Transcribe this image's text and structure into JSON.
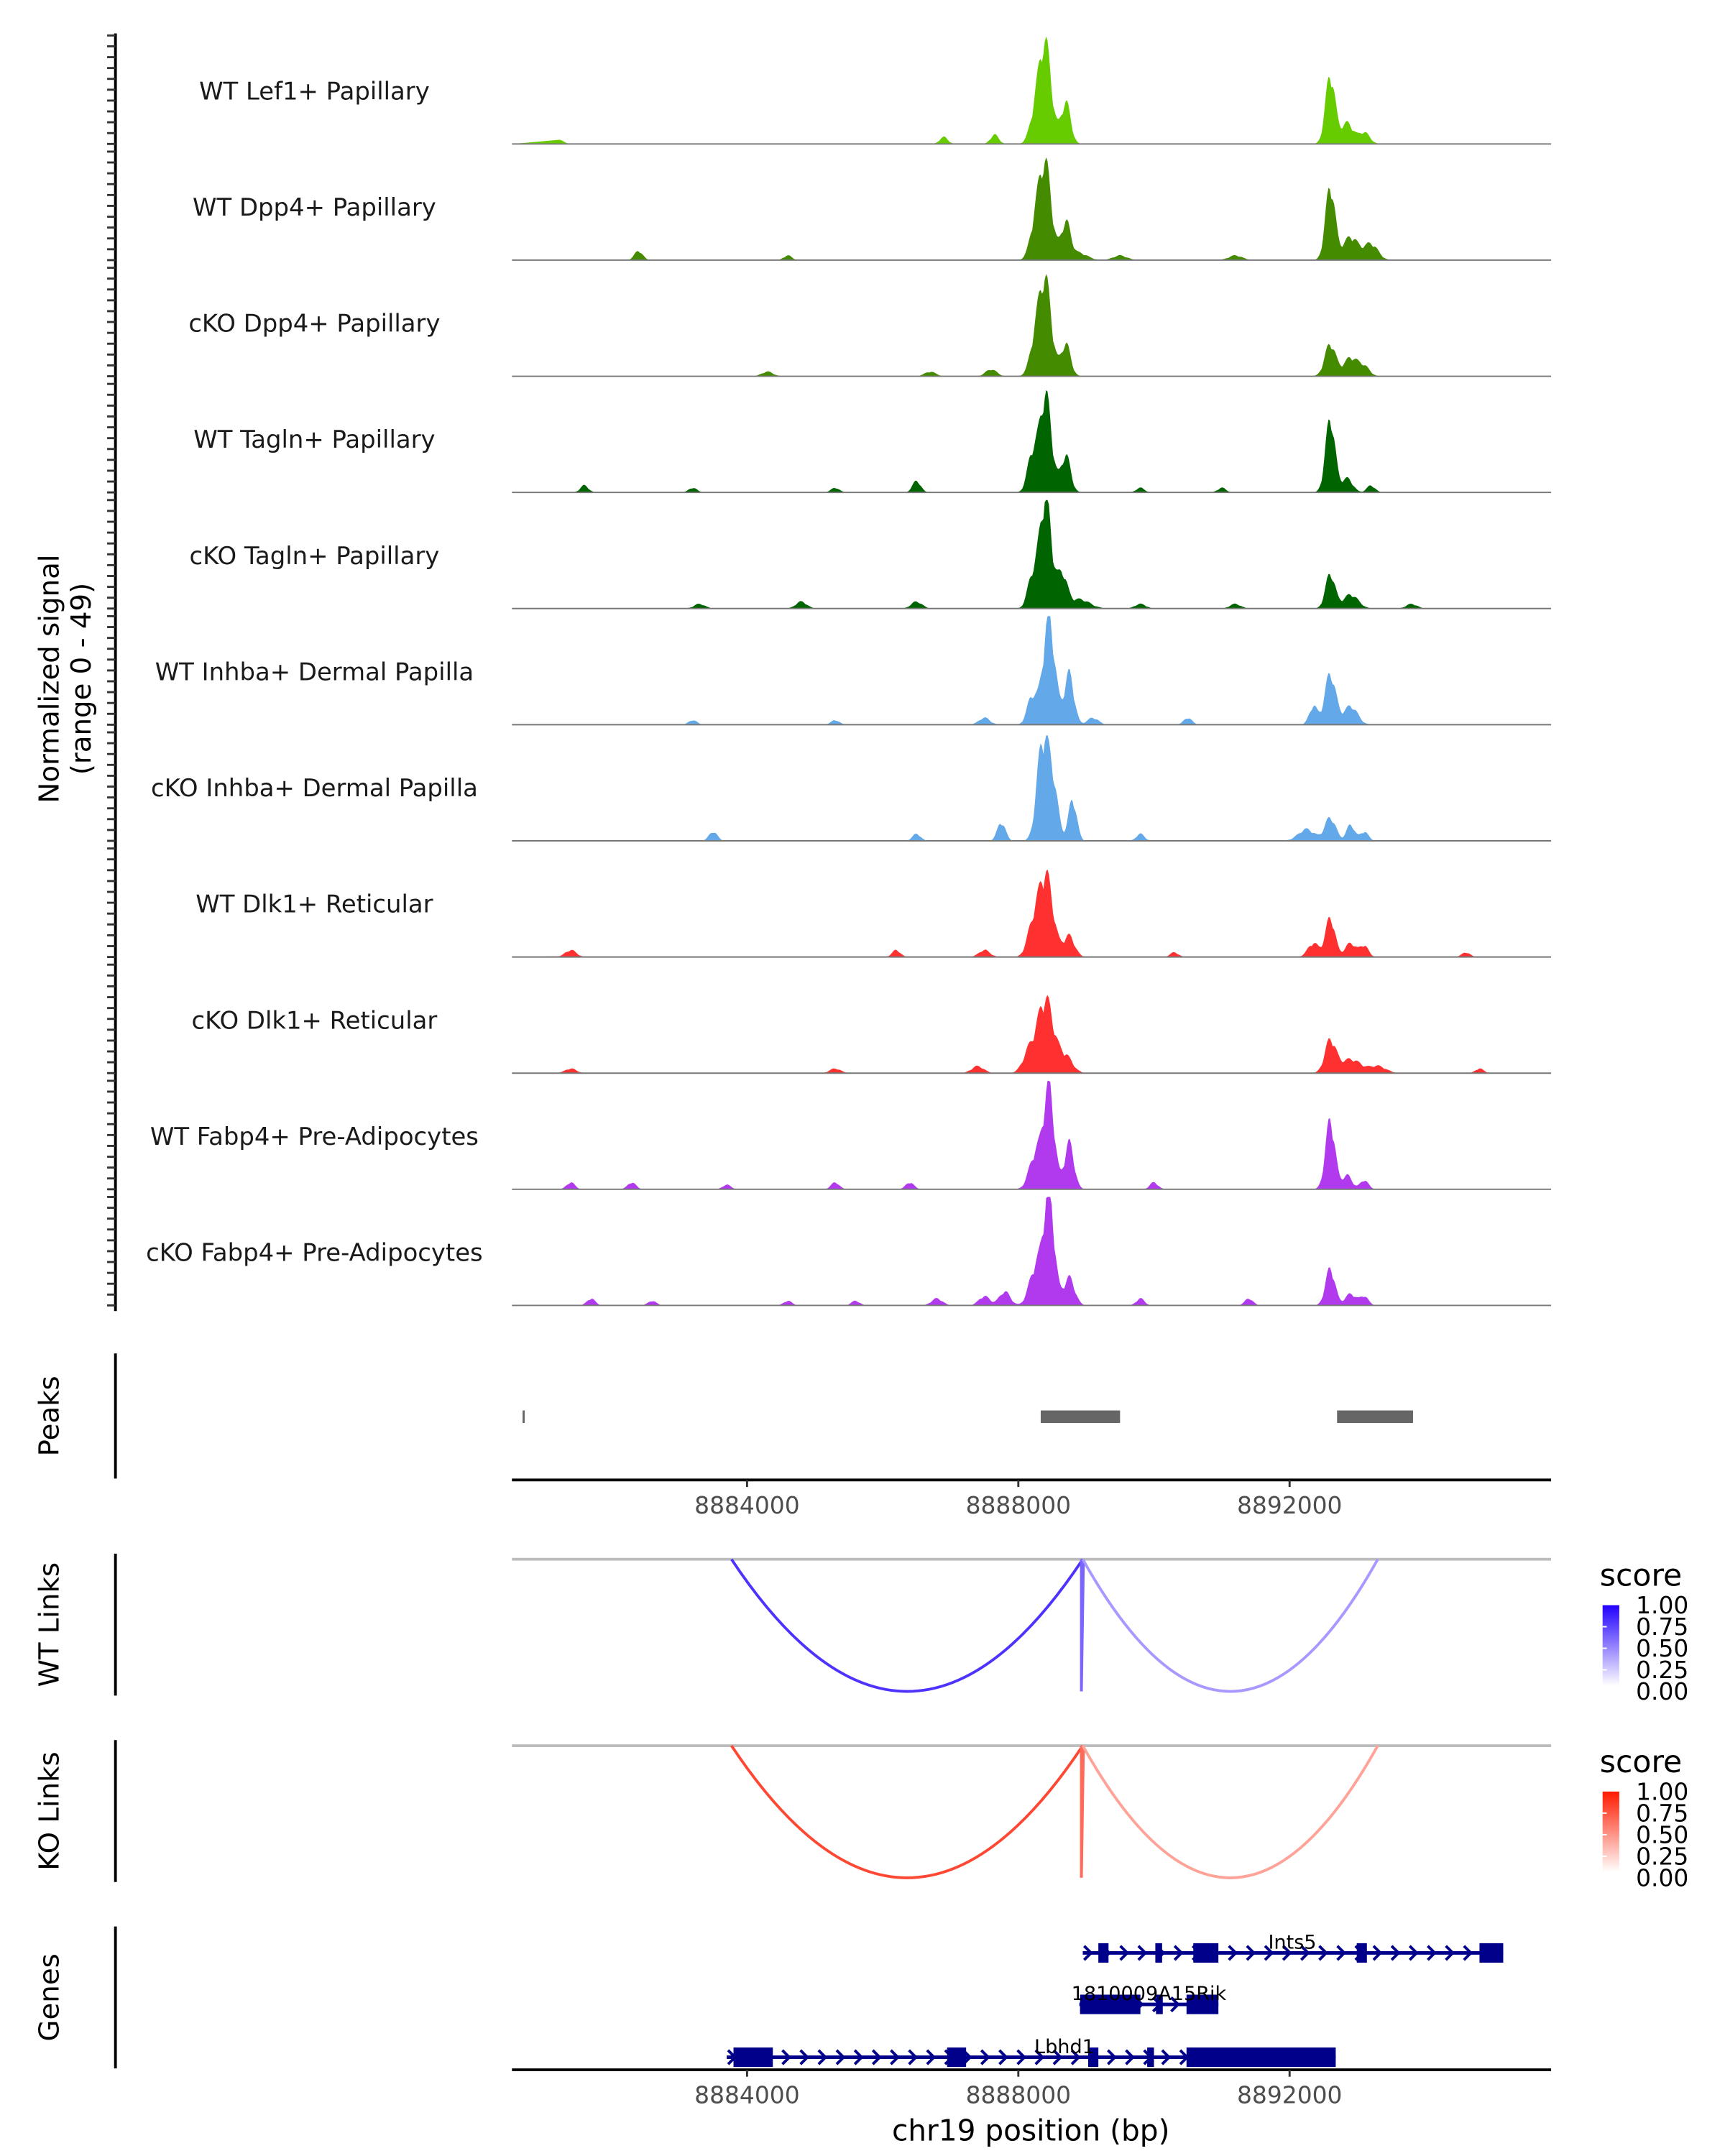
{
  "chart_data": {
    "type": "area",
    "title": "",
    "region": {
      "chromosome": "chr19",
      "start_bp": 8880533,
      "end_bp": 8895856
    },
    "signal_ylabel": "Normalized signal\n(range 0 - 49)",
    "signal_ylim": [
      0,
      49
    ],
    "xlabel": "chr19 position (bp)",
    "x_ticks": [
      8884000,
      8888000,
      8892000
    ],
    "x_tick_labels": [
      "8884000",
      "8888000",
      "8892000"
    ],
    "tracks": [
      {
        "label": "WT Lef1+ Papillary",
        "color": "#66CC00",
        "peaks": [
          [
            8888400,
            42,
            90
          ],
          [
            8888250,
            12,
            80
          ],
          [
            8888700,
            18,
            70
          ],
          [
            8892600,
            30,
            70
          ],
          [
            8892850,
            9,
            90
          ],
          [
            8893100,
            5,
            80
          ],
          [
            8887650,
            4,
            60
          ],
          [
            8886900,
            3,
            60
          ],
          [
            8881200,
            2,
            80
          ]
        ]
      },
      {
        "label": "WT Dpp4+ Papillary",
        "color": "#458B00",
        "peaks": [
          [
            8888400,
            40,
            90
          ],
          [
            8888250,
            14,
            80
          ],
          [
            8888700,
            16,
            70
          ],
          [
            8892600,
            32,
            70
          ],
          [
            8892900,
            10,
            110
          ],
          [
            8893200,
            7,
            100
          ],
          [
            8882400,
            4,
            60
          ],
          [
            8888900,
            3,
            120
          ],
          [
            8889500,
            2,
            100
          ],
          [
            8891200,
            2,
            100
          ],
          [
            8884600,
            2,
            60
          ]
        ]
      },
      {
        "label": "cKO Dpp4+ Papillary",
        "color": "#458B00",
        "peaks": [
          [
            8888400,
            40,
            90
          ],
          [
            8888250,
            14,
            80
          ],
          [
            8888700,
            14,
            70
          ],
          [
            8892600,
            14,
            80
          ],
          [
            8892900,
            8,
            100
          ],
          [
            8893100,
            4,
            80
          ],
          [
            8887600,
            3,
            80
          ],
          [
            8886700,
            2,
            80
          ],
          [
            8884300,
            2,
            80
          ]
        ]
      },
      {
        "label": "WT Tagln+ Papillary",
        "color": "#006400",
        "peaks": [
          [
            8888400,
            42,
            90
          ],
          [
            8888200,
            15,
            70
          ],
          [
            8888700,
            16,
            70
          ],
          [
            8892600,
            32,
            70
          ],
          [
            8892850,
            6,
            80
          ],
          [
            8886500,
            5,
            60
          ],
          [
            8881600,
            3,
            60
          ],
          [
            8883200,
            2,
            60
          ],
          [
            8885300,
            2,
            60
          ],
          [
            8891000,
            2,
            60
          ],
          [
            8889800,
            2,
            60
          ],
          [
            8893200,
            3,
            60
          ]
        ]
      },
      {
        "label": "cKO Tagln+ Papillary",
        "color": "#006400",
        "peaks": [
          [
            8888400,
            48,
            90
          ],
          [
            8888200,
            12,
            70
          ],
          [
            8888650,
            14,
            70
          ],
          [
            8892600,
            15,
            70
          ],
          [
            8892900,
            6,
            110
          ],
          [
            8888900,
            4,
            150
          ],
          [
            8884800,
            3,
            80
          ],
          [
            8883300,
            2,
            80
          ],
          [
            8886500,
            3,
            80
          ],
          [
            8889800,
            2,
            80
          ],
          [
            8891200,
            2,
            80
          ],
          [
            8893800,
            2,
            80
          ]
        ]
      },
      {
        "label": "WT Inhba+ Dermal Papilla",
        "color": "#63A8E8",
        "peaks": [
          [
            8888450,
            46,
            90
          ],
          [
            8888200,
            12,
            70
          ],
          [
            8888750,
            22,
            70
          ],
          [
            8892600,
            22,
            80
          ],
          [
            8892350,
            8,
            60
          ],
          [
            8892900,
            8,
            100
          ],
          [
            8889100,
            3,
            80
          ],
          [
            8887500,
            3,
            80
          ],
          [
            8890500,
            3,
            60
          ],
          [
            8885300,
            2,
            60
          ],
          [
            8883200,
            2,
            60
          ]
        ]
      },
      {
        "label": "cKO Inhba+ Dermal Papilla",
        "color": "#63A8E8",
        "peaks": [
          [
            8888350,
            40,
            80
          ],
          [
            8888500,
            26,
            80
          ],
          [
            8888800,
            18,
            60
          ],
          [
            8887750,
            8,
            60
          ],
          [
            8892600,
            10,
            80
          ],
          [
            8892250,
            5,
            120
          ],
          [
            8892900,
            7,
            60
          ],
          [
            8893100,
            4,
            60
          ],
          [
            8883500,
            4,
            60
          ],
          [
            8886500,
            3,
            60
          ],
          [
            8889800,
            3,
            60
          ]
        ]
      },
      {
        "label": "WT Dlk1+ Reticular",
        "color": "#FF3030",
        "peaks": [
          [
            8888400,
            36,
            110
          ],
          [
            8888200,
            10,
            80
          ],
          [
            8888750,
            9,
            80
          ],
          [
            8892600,
            17,
            70
          ],
          [
            8892350,
            6,
            80
          ],
          [
            8892900,
            6,
            80
          ],
          [
            8893100,
            5,
            60
          ],
          [
            8887500,
            3,
            80
          ],
          [
            8881400,
            3,
            80
          ],
          [
            8886200,
            3,
            60
          ],
          [
            8890300,
            2,
            60
          ],
          [
            8894600,
            2,
            60
          ]
        ]
      },
      {
        "label": "cKO Dlk1+ Reticular",
        "color": "#FF3030",
        "peaks": [
          [
            8888400,
            32,
            120
          ],
          [
            8888150,
            8,
            90
          ],
          [
            8888700,
            7,
            100
          ],
          [
            8892600,
            14,
            80
          ],
          [
            8892900,
            6,
            150
          ],
          [
            8893300,
            3,
            120
          ],
          [
            8887400,
            3,
            90
          ],
          [
            8881400,
            2,
            80
          ],
          [
            8885300,
            2,
            80
          ],
          [
            8894800,
            2,
            60
          ]
        ]
      },
      {
        "label": "WT Fabp4+ Pre-Adipocytes",
        "color": "#B23AEE",
        "peaks": [
          [
            8888450,
            44,
            80
          ],
          [
            8888250,
            15,
            90
          ],
          [
            8888750,
            20,
            70
          ],
          [
            8892600,
            30,
            70
          ],
          [
            8892850,
            6,
            70
          ],
          [
            8893100,
            4,
            60
          ],
          [
            8890000,
            3,
            60
          ],
          [
            8886400,
            3,
            60
          ],
          [
            8881400,
            3,
            60
          ],
          [
            8882300,
            3,
            60
          ],
          [
            8885300,
            3,
            60
          ],
          [
            8883700,
            2,
            60
          ]
        ]
      },
      {
        "label": "cKO Fabp4+ Pre-Adipocytes",
        "color": "#B23AEE",
        "peaks": [
          [
            8888450,
            49,
            80
          ],
          [
            8888250,
            16,
            90
          ],
          [
            8888750,
            12,
            80
          ],
          [
            8892600,
            16,
            70
          ],
          [
            8892900,
            5,
            80
          ],
          [
            8893100,
            4,
            60
          ],
          [
            8887800,
            6,
            80
          ],
          [
            8887500,
            4,
            80
          ],
          [
            8886800,
            3,
            80
          ],
          [
            8889800,
            3,
            60
          ],
          [
            8891400,
            3,
            60
          ],
          [
            8881700,
            3,
            60
          ],
          [
            8882600,
            2,
            60
          ],
          [
            8884600,
            2,
            60
          ],
          [
            8885600,
            2,
            60
          ]
        ]
      }
    ],
    "peaks_track": {
      "label": "Peaks",
      "color": "#666666",
      "regions": [
        [
          8880690,
          8880720
        ],
        [
          8888330,
          8889500
        ],
        [
          8892700,
          8893820
        ]
      ]
    },
    "links_tracks": [
      {
        "label": "WT Links",
        "legend_title": "score",
        "low_color": "#FFFFFF",
        "high_color": "#2200FF",
        "links": [
          {
            "start": 8883770,
            "end": 8888950,
            "score": 0.8
          },
          {
            "start": 8888930,
            "end": 8888960,
            "score": 0.6
          },
          {
            "start": 8888950,
            "end": 8893300,
            "score": 0.4
          }
        ]
      },
      {
        "label": "KO Links",
        "legend_title": "score",
        "low_color": "#FFFFFF",
        "high_color": "#FF1A00",
        "links": [
          {
            "start": 8883770,
            "end": 8888950,
            "score": 0.8
          },
          {
            "start": 8888930,
            "end": 8888960,
            "score": 0.65
          },
          {
            "start": 8888950,
            "end": 8893300,
            "score": 0.4
          }
        ]
      }
    ],
    "legend_ticks": [
      "1.00",
      "0.75",
      "0.50",
      "0.25",
      "0.00"
    ],
    "genes_track": {
      "label": "Genes",
      "color": "#00008B",
      "genes": [
        {
          "name": "Ints5",
          "strand": "+",
          "start": 8888950,
          "end": 8895150,
          "exons": [
            [
              8889180,
              8889330
            ],
            [
              8890020,
              8890120
            ],
            [
              8890580,
              8890950
            ],
            [
              8892990,
              8893140
            ],
            [
              8894800,
              8895150
            ]
          ]
        },
        {
          "name": "1810009A15Rik",
          "strand": "+",
          "start": 8888900,
          "end": 8890950,
          "exons": [
            [
              8888910,
              8889800
            ],
            [
              8890030,
              8890130
            ],
            [
              8890480,
              8890950
            ]
          ]
        },
        {
          "name": "Lbhd1",
          "strand": "+",
          "start": 8883700,
          "end": 8892680,
          "exons": [
            [
              8883800,
              8884380
            ],
            [
              8886950,
              8887230
            ],
            [
              8889030,
              8889180
            ],
            [
              8889900,
              8890000
            ],
            [
              8890480,
              8892680
            ]
          ]
        }
      ]
    }
  }
}
